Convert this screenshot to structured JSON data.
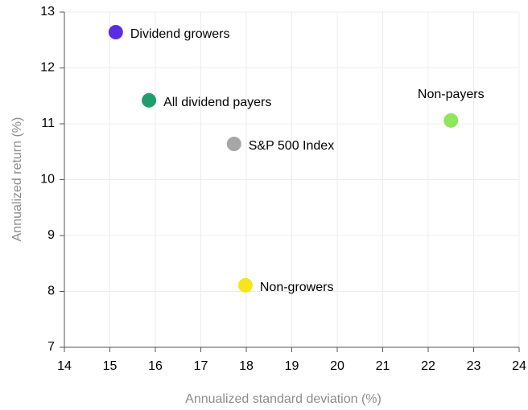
{
  "chart_data": {
    "type": "scatter",
    "xlabel": "Annualized standard deviation (%)",
    "ylabel": "Annualized return (%)",
    "series": [
      {
        "name": "Dividend growers",
        "color": "#5a2ee0",
        "x": [
          15.13
        ],
        "values": [
          12.64
        ]
      },
      {
        "name": "All dividend payers",
        "color": "#1f9d6b",
        "x": [
          15.86
        ],
        "values": [
          11.42
        ]
      },
      {
        "name": "S&P 500 Index",
        "color": "#a6a6a6",
        "x": [
          17.73
        ],
        "values": [
          10.64
        ]
      },
      {
        "name": "Non-payers",
        "color": "#8fe65a",
        "x": [
          22.5
        ],
        "values": [
          11.06
        ]
      },
      {
        "name": "Non-growers",
        "color": "#f5e61a",
        "x": [
          17.98
        ],
        "values": [
          8.11
        ]
      }
    ],
    "xlim": [
      14,
      24
    ],
    "xticks": [
      14,
      15,
      16,
      17,
      18,
      19,
      20,
      21,
      22,
      23,
      24
    ],
    "ylim": [
      7,
      13
    ],
    "yticks": [
      7,
      8,
      9,
      10,
      11,
      12,
      13
    ],
    "grid": true
  }
}
